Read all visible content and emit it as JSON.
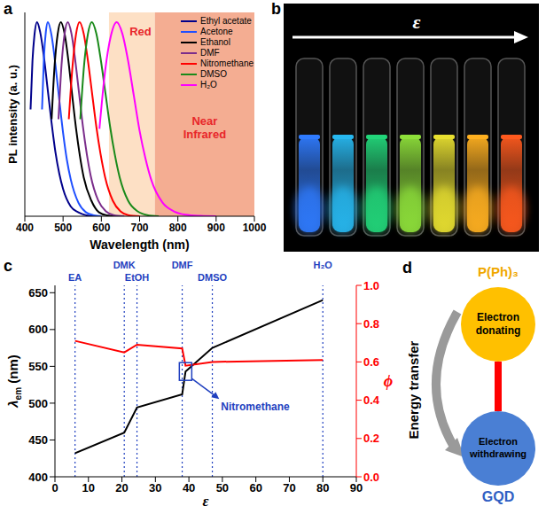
{
  "chart_data": [
    {
      "panel_label": "a",
      "type": "line",
      "xlabel": "Wavelength (nm)",
      "ylabel": "PL intensity (a. u.)",
      "xlim": [
        400,
        1000
      ],
      "xticks": [
        400,
        500,
        600,
        700,
        800,
        900,
        1000
      ],
      "ylim": [
        0,
        1.05
      ],
      "tick_labels": "x",
      "legend": "upper right",
      "marker": "none",
      "regions": [
        {
          "label": "Red",
          "from": 620,
          "to": 740,
          "color": "#fde0c5"
        },
        {
          "label": "Near Infrared",
          "from": 740,
          "to": 1000,
          "color": "#f4ad92"
        }
      ],
      "series": [
        {
          "name": "Ethyl acetate",
          "color": "#00008b",
          "x": [
            415,
            420,
            425,
            432,
            440,
            450,
            460,
            470,
            480,
            490,
            500,
            520,
            540,
            560,
            580
          ],
          "values": [
            0.55,
            0.8,
            0.93,
            1.0,
            0.95,
            0.82,
            0.65,
            0.48,
            0.33,
            0.22,
            0.14,
            0.05,
            0.02,
            0.005,
            0
          ]
        },
        {
          "name": "Acetone",
          "color": "#1f4fff",
          "x": [
            445,
            450,
            455,
            460,
            470,
            480,
            490,
            500,
            510,
            520,
            540,
            560,
            580,
            600
          ],
          "values": [
            0.55,
            0.82,
            0.95,
            1.0,
            0.93,
            0.78,
            0.6,
            0.43,
            0.29,
            0.19,
            0.07,
            0.02,
            0.005,
            0
          ]
        },
        {
          "name": "Ethanol",
          "color": "#000000",
          "x": [
            470,
            478,
            486,
            494,
            504,
            514,
            524,
            534,
            544,
            554,
            574,
            594,
            614,
            640
          ],
          "values": [
            0.5,
            0.78,
            0.94,
            1.0,
            0.94,
            0.8,
            0.62,
            0.45,
            0.31,
            0.2,
            0.08,
            0.02,
            0.005,
            0
          ]
        },
        {
          "name": "DMF",
          "color": "#7b2d8b",
          "x": [
            488,
            496,
            504,
            512,
            522,
            532,
            542,
            552,
            562,
            572,
            592,
            612,
            632,
            660
          ],
          "values": [
            0.5,
            0.78,
            0.94,
            1.0,
            0.94,
            0.8,
            0.63,
            0.46,
            0.32,
            0.21,
            0.08,
            0.025,
            0.006,
            0
          ]
        },
        {
          "name": "Nitromethane",
          "color": "#ff0000",
          "x": [
            515,
            525,
            534,
            543,
            554,
            565,
            576,
            587,
            598,
            610,
            630,
            650,
            670,
            700
          ],
          "values": [
            0.5,
            0.78,
            0.94,
            1.0,
            0.94,
            0.8,
            0.63,
            0.46,
            0.32,
            0.2,
            0.08,
            0.025,
            0.006,
            0
          ]
        },
        {
          "name": "DMSO",
          "color": "#1a8a1a",
          "x": [
            545,
            555,
            565,
            575,
            587,
            599,
            611,
            623,
            635,
            648,
            670,
            695,
            720,
            750
          ],
          "values": [
            0.5,
            0.78,
            0.94,
            1.0,
            0.94,
            0.8,
            0.63,
            0.46,
            0.32,
            0.2,
            0.08,
            0.025,
            0.006,
            0
          ]
        },
        {
          "name": "H₂O",
          "color": "#ff00ff",
          "x": [
            595,
            610,
            625,
            640,
            655,
            670,
            685,
            700,
            715,
            730,
            760,
            790,
            820,
            860,
            900
          ],
          "values": [
            0.45,
            0.75,
            0.93,
            1.0,
            0.94,
            0.8,
            0.62,
            0.44,
            0.3,
            0.19,
            0.07,
            0.025,
            0.008,
            0.002,
            0
          ]
        }
      ]
    },
    {
      "panel_label": "c",
      "type": "line",
      "xlabel": "ε",
      "ylabel": {
        "main": "λ",
        "sub": "em",
        "after": " (nm)"
      },
      "y2label": "ϕ",
      "marker": "none",
      "x": [
        6,
        20.7,
        24.5,
        38,
        39,
        47,
        80
      ],
      "xlim": [
        0,
        90
      ],
      "xticks": [
        0,
        10,
        20,
        30,
        40,
        50,
        60,
        70,
        80,
        90
      ],
      "ylim": [
        400,
        660
      ],
      "yticks": [
        400,
        450,
        500,
        550,
        600,
        650
      ],
      "y2lim": [
        0,
        1
      ],
      "y2ticks": [
        {
          "value": 0,
          "label": "0.0"
        },
        0.2,
        0.4,
        0.6,
        0.8,
        {
          "value": 1,
          "label": "1.0"
        }
      ],
      "series": [
        {
          "color": "#000000",
          "values": [
            432,
            460,
            494,
            512,
            543,
            575,
            640
          ]
        },
        {
          "color": "#ff0000",
          "axis": "y2",
          "values": [
            0.71,
            0.65,
            0.69,
            0.67,
            0.58,
            0.6,
            0.61
          ]
        }
      ],
      "ref_lines": [
        {
          "x": 6,
          "label": "EA"
        },
        {
          "x": 20.7,
          "label": "DMK"
        },
        {
          "x": 24.5,
          "label": "EtOH"
        },
        {
          "x": 38,
          "label": "DMF"
        },
        {
          "x": 47,
          "label": "DMSO"
        },
        {
          "x": 80,
          "label": "H₂O"
        }
      ],
      "annotations": [
        {
          "text": "Nitromethane",
          "x": 39,
          "y": 543
        }
      ]
    }
  ],
  "photo": {
    "panel_label": "b",
    "arrow_label": "ε",
    "vial_colors": [
      "#2f7bff",
      "#27b8f0",
      "#22d67a",
      "#8ee03a",
      "#e8e030",
      "#ffb020",
      "#ff5a1e"
    ]
  },
  "diagram": {
    "panel_label": "d",
    "side_label": "Energy transfer",
    "nodes": [
      {
        "title": "P(Ph)₃",
        "title_color": "#f0a800",
        "text": "Electron donating",
        "color": "#ffc000"
      },
      {
        "title": "GQD",
        "title_color": "#2f5fc4",
        "text": "Electron withdrawing",
        "color": "#4a7fd4"
      }
    ],
    "link_color": "#ff0000"
  }
}
